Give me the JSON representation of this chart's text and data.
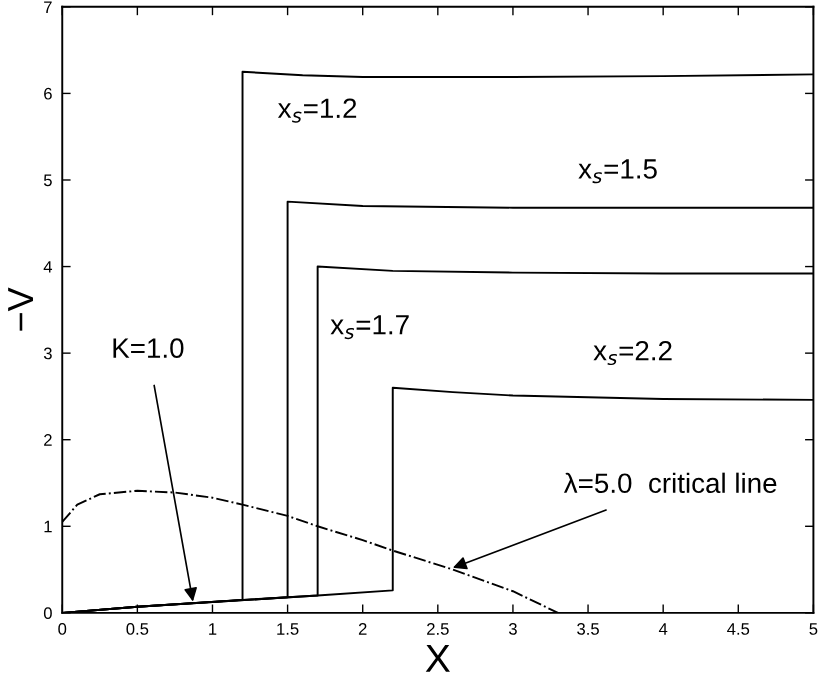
{
  "chart_data": {
    "type": "line",
    "xlabel": "X",
    "ylabel": "−V",
    "xlim": [
      0,
      5
    ],
    "ylim": [
      0,
      7
    ],
    "xticks": [
      0,
      0.5,
      1,
      1.5,
      2,
      2.5,
      3,
      3.5,
      4,
      4.5,
      5
    ],
    "yticks": [
      0,
      1,
      2,
      3,
      4,
      5,
      6,
      7
    ],
    "grid": false,
    "legend": false,
    "marker": "none",
    "series": [
      {
        "name": "x$_{s}$=1.2",
        "color": "#000000",
        "line_style": "solid",
        "x": [
          0,
          0.5,
          1.2,
          1.2,
          1.6,
          2.0,
          3.0,
          4.0,
          5.0
        ],
        "values": [
          0,
          0.07,
          0.15,
          6.25,
          6.21,
          6.19,
          6.19,
          6.2,
          6.22
        ]
      },
      {
        "name": "x$_{s}$=1.5",
        "color": "#000000",
        "line_style": "solid",
        "x": [
          0,
          0.5,
          1.5,
          1.5,
          2.0,
          3.0,
          4.0,
          5.0
        ],
        "values": [
          0,
          0.07,
          0.18,
          4.75,
          4.7,
          4.68,
          4.68,
          4.68
        ]
      },
      {
        "name": "x$_{s}$=1.7",
        "color": "#000000",
        "line_style": "solid",
        "x": [
          0,
          0.5,
          1.7,
          1.7,
          2.2,
          3.0,
          4.0,
          5.0
        ],
        "values": [
          0,
          0.07,
          0.2,
          4.0,
          3.95,
          3.93,
          3.92,
          3.92
        ]
      },
      {
        "name": "x$_{s}$=2.2",
        "color": "#000000",
        "line_style": "solid",
        "x": [
          0,
          0.5,
          1.2,
          1.7,
          2.2,
          2.2,
          2.6,
          3.0,
          4.0,
          5.0
        ],
        "values": [
          0,
          0.07,
          0.15,
          0.2,
          0.26,
          2.6,
          2.55,
          2.51,
          2.47,
          2.46
        ]
      },
      {
        "color": "#000000",
        "line_style": "dashdot",
        "x": [
          0,
          0.1,
          0.25,
          0.5,
          0.75,
          1.0,
          1.2,
          1.5,
          1.7,
          2.0,
          2.2,
          2.6,
          3.0,
          3.3
        ],
        "values": [
          1.05,
          1.25,
          1.37,
          1.41,
          1.39,
          1.33,
          1.25,
          1.12,
          1.0,
          0.84,
          0.72,
          0.5,
          0.25,
          0
        ]
      }
    ],
    "annotations": [
      {
        "text": "K=1.0",
        "x": 0.87,
        "y": 0.13
      },
      {
        "text": "λ=5.0  critical line",
        "x": 2.6,
        "y": 0.52
      }
    ]
  }
}
